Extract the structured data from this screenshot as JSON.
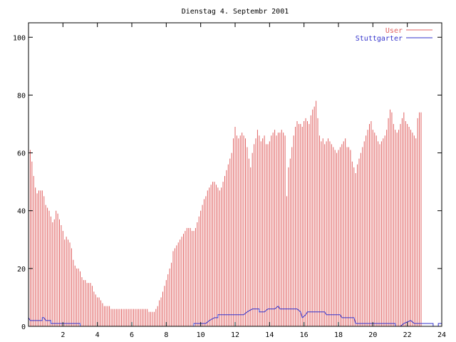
{
  "chart_data": {
    "type": "bar",
    "title": "Dienstag 4. Septembr 2001",
    "xlabel": "",
    "ylabel": "",
    "xlim": [
      0,
      24
    ],
    "ylim": [
      0,
      105
    ],
    "xticks": [
      2,
      4,
      6,
      8,
      10,
      12,
      14,
      16,
      18,
      20,
      22,
      24
    ],
    "yticks": [
      0,
      20,
      40,
      60,
      80,
      100
    ],
    "grid": false,
    "legend_position": "top-right",
    "x_step_hours": 0.1,
    "series": [
      {
        "name": "User",
        "style": "impulses",
        "color": "#e06060",
        "values": [
          62,
          61,
          57,
          52,
          48,
          46,
          47,
          47,
          47,
          45,
          42,
          41,
          40,
          38,
          36,
          37,
          40,
          39,
          37,
          35,
          33,
          30,
          31,
          30,
          29,
          27,
          23,
          21,
          20,
          20,
          19,
          17,
          16,
          16,
          15,
          15,
          15,
          14,
          12,
          11,
          10,
          10,
          9,
          8,
          7,
          7,
          7,
          7,
          6,
          6,
          6,
          6,
          6,
          6,
          6,
          6,
          6,
          6,
          6,
          6,
          6,
          6,
          6,
          6,
          6,
          6,
          6,
          6,
          6,
          6,
          5,
          5,
          5,
          5,
          6,
          7,
          9,
          10,
          12,
          14,
          16,
          18,
          20,
          22,
          26,
          27,
          28,
          29,
          30,
          31,
          32,
          33,
          34,
          34,
          34,
          33,
          33,
          34,
          36,
          38,
          40,
          42,
          44,
          45,
          47,
          48,
          49,
          50,
          50,
          49,
          48,
          47,
          48,
          50,
          52,
          54,
          56,
          58,
          60,
          65,
          69,
          66,
          65,
          66,
          67,
          66,
          65,
          62,
          58,
          55,
          60,
          63,
          65,
          68,
          66,
          64,
          65,
          66,
          63,
          63,
          64,
          66,
          67,
          68,
          66,
          67,
          67,
          68,
          67,
          66,
          45,
          55,
          58,
          62,
          66,
          69,
          71,
          70,
          70,
          69,
          71,
          72,
          71,
          70,
          73,
          75,
          76,
          78,
          72,
          66,
          64,
          65,
          63,
          64,
          65,
          64,
          63,
          62,
          61,
          60,
          61,
          62,
          63,
          64,
          65,
          62,
          62,
          61,
          57,
          55,
          53,
          56,
          58,
          60,
          62,
          64,
          66,
          68,
          70,
          71,
          68,
          67,
          66,
          64,
          63,
          64,
          65,
          66,
          68,
          72,
          75,
          74,
          70,
          68,
          67,
          68,
          70,
          72,
          74,
          71,
          70,
          69,
          68,
          67,
          66,
          65,
          72,
          74,
          74
        ]
      },
      {
        "name": "Stuttgarter",
        "style": "lines",
        "color": "#3333cc",
        "points": [
          [
            0,
            3
          ],
          [
            0.1,
            2
          ],
          [
            0.8,
            2
          ],
          [
            0.8,
            3
          ],
          [
            0.9,
            3
          ],
          [
            1,
            2
          ],
          [
            1.3,
            2
          ],
          [
            1.3,
            1
          ],
          [
            3,
            1
          ],
          [
            3,
            0
          ],
          [
            9.6,
            0
          ],
          [
            9.6,
            1
          ],
          [
            10.3,
            1
          ],
          [
            10.5,
            2
          ],
          [
            10.8,
            3
          ],
          [
            11,
            3
          ],
          [
            11,
            4
          ],
          [
            12.5,
            4
          ],
          [
            12.7,
            5
          ],
          [
            13,
            6
          ],
          [
            13.4,
            6
          ],
          [
            13.4,
            5
          ],
          [
            13.7,
            5
          ],
          [
            13.9,
            6
          ],
          [
            14.3,
            6
          ],
          [
            14.5,
            7
          ],
          [
            14.6,
            6
          ],
          [
            15.6,
            6
          ],
          [
            15.8,
            5
          ],
          [
            15.9,
            3
          ],
          [
            16.1,
            4
          ],
          [
            16.2,
            5
          ],
          [
            17.2,
            5
          ],
          [
            17.3,
            4
          ],
          [
            18.1,
            4
          ],
          [
            18.2,
            3
          ],
          [
            18.9,
            3
          ],
          [
            19,
            1
          ],
          [
            21.3,
            1
          ],
          [
            21.3,
            0
          ],
          [
            21.6,
            0
          ],
          [
            21.8,
            1
          ],
          [
            22.2,
            2
          ],
          [
            22.4,
            1
          ],
          [
            23.5,
            1
          ],
          [
            23.5,
            0
          ],
          [
            23.8,
            0
          ],
          [
            23.8,
            1
          ],
          [
            24,
            1
          ]
        ]
      }
    ]
  }
}
